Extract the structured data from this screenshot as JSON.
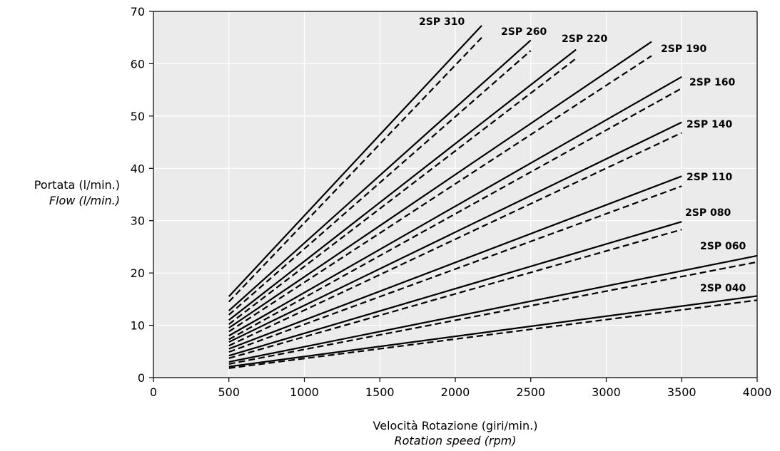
{
  "chart_data": {
    "type": "line",
    "xlabel": "Velocità Rotazione (giri/min.)",
    "xlabel_en": "Rotation speed (rpm)",
    "ylabel": "Portata (l/min.)",
    "ylabel_en": "Flow (l/min.)",
    "xlim": [
      0,
      4000
    ],
    "ylim": [
      0,
      70
    ],
    "x_ticks": [
      0,
      500,
      1000,
      1500,
      2000,
      2500,
      3000,
      3500,
      4000
    ],
    "y_ticks": [
      0,
      10,
      20,
      30,
      40,
      50,
      60,
      70
    ],
    "grid": true,
    "background": "#ebebeb",
    "line_styles": [
      "solid",
      "dashed"
    ],
    "series": [
      {
        "name": "2SP 310",
        "x": [
          500,
          2175
        ],
        "solid": [
          15.5,
          67.3
        ],
        "dashed": [
          14.5,
          65.0
        ]
      },
      {
        "name": "2SP 260",
        "x": [
          500,
          2500
        ],
        "solid": [
          12.8,
          64.5
        ],
        "dashed": [
          12.0,
          62.5
        ]
      },
      {
        "name": "2SP 220",
        "x": [
          500,
          2800
        ],
        "solid": [
          11.0,
          62.7
        ],
        "dashed": [
          10.2,
          61.0
        ]
      },
      {
        "name": "2SP 190",
        "x": [
          500,
          3300
        ],
        "solid": [
          9.5,
          64.2
        ],
        "dashed": [
          8.8,
          61.5
        ]
      },
      {
        "name": "2SP 160",
        "x": [
          500,
          3500
        ],
        "solid": [
          8.0,
          57.5
        ],
        "dashed": [
          7.3,
          55.3
        ]
      },
      {
        "name": "2SP 140",
        "x": [
          500,
          3500
        ],
        "solid": [
          6.8,
          48.8
        ],
        "dashed": [
          6.1,
          46.8
        ]
      },
      {
        "name": "2SP 110",
        "x": [
          500,
          3500
        ],
        "solid": [
          5.5,
          38.5
        ],
        "dashed": [
          4.9,
          36.6
        ]
      },
      {
        "name": "2SP 080",
        "x": [
          500,
          3500
        ],
        "solid": [
          4.2,
          29.8
        ],
        "dashed": [
          3.7,
          28.3
        ]
      },
      {
        "name": "2SP 060",
        "x": [
          500,
          4000
        ],
        "solid": [
          3.0,
          23.3
        ],
        "dashed": [
          2.6,
          22.1
        ]
      },
      {
        "name": "2SP 040",
        "x": [
          500,
          4000
        ],
        "solid": [
          2.1,
          15.6
        ],
        "dashed": [
          1.8,
          14.8
        ]
      }
    ]
  }
}
